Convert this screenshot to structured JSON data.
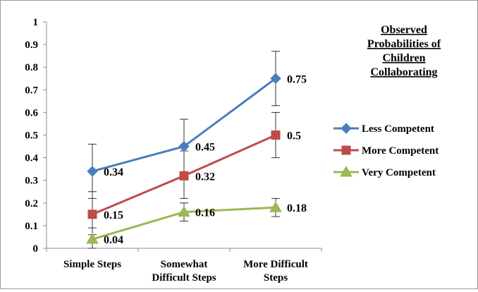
{
  "chart_data": {
    "type": "line",
    "title": "Observed Probabilities of Children Collaborating",
    "title_lines": [
      "Observed",
      "Probabilities of",
      "Children",
      "Collaborating"
    ],
    "categories": [
      "Simple Steps",
      "Somewhat Difficult Steps",
      "More Difficult Steps"
    ],
    "category_lines": [
      [
        "Simple Steps"
      ],
      [
        "Somewhat",
        "Difficult Steps"
      ],
      [
        "More Difficult",
        "Steps"
      ]
    ],
    "ylim": [
      0,
      1
    ],
    "yticks": [
      "0",
      "0.1",
      "0.2",
      "0.3",
      "0.4",
      "0.5",
      "0.6",
      "0.7",
      "0.8",
      "0.9",
      "1"
    ],
    "grid": false,
    "legend_position": "right",
    "series": [
      {
        "name": "Less Competent",
        "color": "#4a7ebb",
        "marker": "diamond",
        "values": [
          0.34,
          0.45,
          0.75
        ],
        "labels": [
          "0.34",
          "0.45",
          "0.75"
        ],
        "error_low": [
          0.22,
          0.32,
          0.63
        ],
        "error_high": [
          0.46,
          0.57,
          0.87
        ]
      },
      {
        "name": "More Competent",
        "color": "#be4b48",
        "marker": "square",
        "values": [
          0.15,
          0.32,
          0.5
        ],
        "labels": [
          "0.15",
          "0.32",
          "0.5"
        ],
        "error_low": [
          0.06,
          0.22,
          0.4
        ],
        "error_high": [
          0.25,
          0.43,
          0.6
        ]
      },
      {
        "name": "Very Competent",
        "color": "#98b954",
        "marker": "triangle",
        "values": [
          0.04,
          0.16,
          0.18
        ],
        "labels": [
          "0.04",
          "0.16",
          "0.18"
        ],
        "error_low": [
          0.0,
          0.12,
          0.14
        ],
        "error_high": [
          0.09,
          0.2,
          0.22
        ]
      }
    ]
  }
}
